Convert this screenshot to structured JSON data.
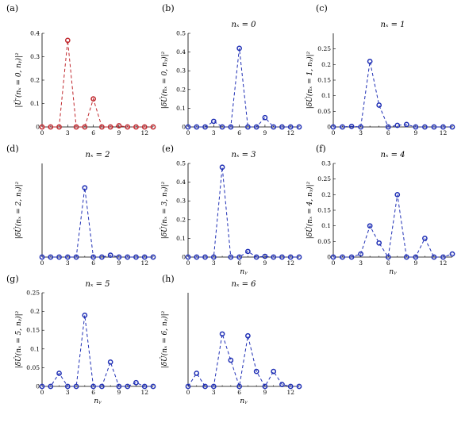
{
  "chart_data": [
    {
      "type": "line",
      "panel": "(a)",
      "title": "",
      "xlabel": "",
      "ylabel": "|Ü′(nₓ = 0, nᵧ)|²",
      "xlim": [
        0,
        13
      ],
      "ylim": [
        0,
        0.4
      ],
      "xticks": [
        "0",
        "3",
        "6",
        "9",
        "12"
      ],
      "xtick_values": [
        0,
        3,
        6,
        9,
        12
      ],
      "yticks": [
        "0",
        "0.1",
        "0.2",
        "0.3",
        "0.4"
      ],
      "ytick_values": [
        0,
        0.1,
        0.2,
        0.3,
        0.4
      ],
      "color": "#c0272d",
      "x": [
        0,
        1,
        2,
        3,
        4,
        5,
        6,
        7,
        8,
        9,
        10,
        11,
        12,
        13
      ],
      "y": [
        0,
        0,
        0,
        0.37,
        0,
        0,
        0.12,
        0,
        0,
        0.005,
        0,
        0,
        0,
        0
      ]
    },
    {
      "type": "line",
      "panel": "(b)",
      "title": "nₓ = 0",
      "xlabel": "",
      "ylabel": "|δÛ(nₓ = 0, nᵧ)|²",
      "xlim": [
        0,
        13
      ],
      "ylim": [
        0,
        0.5
      ],
      "xticks": [
        "0",
        "3",
        "6",
        "9",
        "12"
      ],
      "xtick_values": [
        0,
        3,
        6,
        9,
        12
      ],
      "yticks": [
        "0",
        "0.1",
        "0.2",
        "0.3",
        "0.4",
        "0.5"
      ],
      "ytick_values": [
        0,
        0.1,
        0.2,
        0.3,
        0.4,
        0.5
      ],
      "color": "#1f2fb5",
      "x": [
        0,
        1,
        2,
        3,
        4,
        5,
        6,
        7,
        8,
        9,
        10,
        11,
        12,
        13
      ],
      "y": [
        0,
        0,
        0,
        0.03,
        0,
        0,
        0.42,
        0,
        0,
        0.05,
        0,
        0,
        0,
        0
      ]
    },
    {
      "type": "line",
      "panel": "(c)",
      "title": "nₓ = 1",
      "xlabel": "",
      "ylabel": "|δÛ(nₓ = 1, nᵧ)|²",
      "xlim": [
        0,
        13
      ],
      "ylim": [
        0,
        0.3
      ],
      "xticks": [
        "0",
        "3",
        "6",
        "9",
        "12"
      ],
      "xtick_values": [
        0,
        3,
        6,
        9,
        12
      ],
      "yticks": [
        "0",
        "0.05",
        "0.1",
        "0.15",
        "0.2",
        "0.25"
      ],
      "ytick_values": [
        0,
        0.05,
        0.1,
        0.15,
        0.2,
        0.25
      ],
      "color": "#1f2fb5",
      "x": [
        0,
        1,
        2,
        3,
        4,
        5,
        6,
        7,
        8,
        9,
        10,
        11,
        12,
        13
      ],
      "y": [
        0,
        0,
        0.002,
        0,
        0.21,
        0.07,
        0,
        0.005,
        0.008,
        0,
        0,
        0,
        0,
        0
      ]
    },
    {
      "type": "line",
      "panel": "(d)",
      "title": "nₓ = 2",
      "xlabel": "",
      "ylabel": "|δÛ(nₓ = 2, nᵧ)|²",
      "xlim": [
        0,
        13
      ],
      "ylim": [
        0,
        0.5
      ],
      "xticks": [
        "0",
        "3",
        "6",
        "9",
        "12"
      ],
      "xtick_values": [
        0,
        3,
        6,
        9,
        12
      ],
      "yticks": [],
      "ytick_values": [],
      "color": "#1f2fb5",
      "x": [
        0,
        1,
        2,
        3,
        4,
        5,
        6,
        7,
        8,
        9,
        10,
        11,
        12,
        13
      ],
      "y": [
        0,
        0,
        0,
        0,
        0,
        0.37,
        0,
        0,
        0.01,
        0,
        0,
        0,
        0,
        0
      ]
    },
    {
      "type": "line",
      "panel": "(e)",
      "title": "nₓ = 3",
      "xlabel": "nᵧ",
      "ylabel": "|δÛ(nₓ = 3, nᵧ)|²",
      "xlim": [
        0,
        13
      ],
      "ylim": [
        0,
        0.5
      ],
      "xticks": [
        "0",
        "3",
        "6",
        "9",
        "12"
      ],
      "xtick_values": [
        0,
        3,
        6,
        9,
        12
      ],
      "yticks": [
        "0",
        "0.1",
        "0.2",
        "0.3",
        "0.4",
        "0.5"
      ],
      "ytick_values": [
        0,
        0.1,
        0.2,
        0.3,
        0.4,
        0.5
      ],
      "color": "#1f2fb5",
      "x": [
        0,
        1,
        2,
        3,
        4,
        5,
        6,
        7,
        8,
        9,
        10,
        11,
        12,
        13
      ],
      "y": [
        0,
        0,
        0,
        0,
        0.48,
        0,
        0,
        0.03,
        0,
        0.004,
        0,
        0,
        0,
        0
      ]
    },
    {
      "type": "line",
      "panel": "(f)",
      "title": "nₓ = 4",
      "xlabel": "nᵧ",
      "ylabel": "|δÛ(nₓ = 4, nᵧ)|²",
      "xlim": [
        0,
        13
      ],
      "ylim": [
        0,
        0.3
      ],
      "xticks": [
        "0",
        "3",
        "6",
        "9",
        "12"
      ],
      "xtick_values": [
        0,
        3,
        6,
        9,
        12
      ],
      "yticks": [
        "0",
        "0.05",
        "0.1",
        "0.15",
        "0.2",
        "0.25",
        "0.3"
      ],
      "ytick_values": [
        0,
        0.05,
        0.1,
        0.15,
        0.2,
        0.25,
        0.3
      ],
      "color": "#1f2fb5",
      "x": [
        0,
        1,
        2,
        3,
        4,
        5,
        6,
        7,
        8,
        9,
        10,
        11,
        12,
        13
      ],
      "y": [
        0,
        0,
        0,
        0.01,
        0.1,
        0.045,
        0,
        0.2,
        0,
        0,
        0.06,
        0,
        0,
        0.01
      ]
    },
    {
      "type": "line",
      "panel": "(g)",
      "title": "nₓ = 5",
      "xlabel": "nᵧ",
      "ylabel": "|δÛ(nₓ = 5, nᵧ)|²",
      "xlim": [
        0,
        13
      ],
      "ylim": [
        0,
        0.25
      ],
      "xticks": [
        "0",
        "3",
        "6",
        "9",
        "12"
      ],
      "xtick_values": [
        0,
        3,
        6,
        9,
        12
      ],
      "yticks": [
        "0",
        "0.05",
        "0.1",
        "0.15",
        "0.2",
        "0.25"
      ],
      "ytick_values": [
        0,
        0.05,
        0.1,
        0.15,
        0.2,
        0.25
      ],
      "color": "#1f2fb5",
      "x": [
        0,
        1,
        2,
        3,
        4,
        5,
        6,
        7,
        8,
        9,
        10,
        11,
        12,
        13
      ],
      "y": [
        0,
        0,
        0.035,
        0,
        0,
        0.19,
        0,
        0,
        0.065,
        0,
        0,
        0.01,
        0,
        0
      ]
    },
    {
      "type": "line",
      "panel": "(h)",
      "title": "nₓ = 6",
      "xlabel": "nᵧ",
      "ylabel": "|δÛ(nₓ = 6, nᵧ)|²",
      "xlim": [
        0,
        13
      ],
      "ylim": [
        0,
        0.25
      ],
      "xticks": [
        "0",
        "3",
        "6",
        "9",
        "12"
      ],
      "xtick_values": [
        0,
        3,
        6,
        9,
        12
      ],
      "yticks": [],
      "ytick_values": [],
      "color": "#1f2fb5",
      "x": [
        0,
        1,
        2,
        3,
        4,
        5,
        6,
        7,
        8,
        9,
        10,
        11,
        12,
        13
      ],
      "y": [
        0,
        0.035,
        0,
        0,
        0.14,
        0.07,
        0,
        0.135,
        0.04,
        0,
        0.04,
        0.005,
        0,
        0
      ]
    }
  ]
}
